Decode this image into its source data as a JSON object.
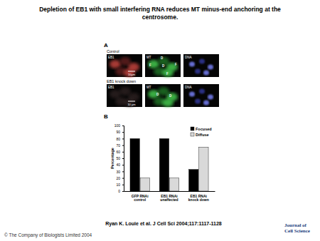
{
  "figure": {
    "title": "Depletion of EB1 with small interfering RNA reduces MT minus-end anchoring at the centrosome.",
    "panel_a": {
      "label": "A",
      "rows": [
        {
          "condition": "Control",
          "images": [
            {
              "channel": "EB1",
              "scale_bar": "10μm"
            },
            {
              "channel": "MT",
              "marks": [
                "F",
                "D",
                "D",
                "F",
                "F"
              ]
            },
            {
              "channel": "DNA"
            }
          ]
        },
        {
          "condition": "EB1 knock down",
          "images": [
            {
              "channel": "EB1",
              "scale_bar": "10 μm"
            },
            {
              "channel": "MT",
              "marks": [
                "D",
                "D"
              ]
            },
            {
              "channel": "DNA"
            }
          ]
        }
      ]
    },
    "panel_b": {
      "label": "B"
    },
    "citation": "Ryan K. Louie et al. J Cell Sci 2004;117:1117-1128",
    "copyright": "© The Company of Biologists Limited 2004",
    "journal": "Journal of Cell Science"
  },
  "chart_data": {
    "type": "bar",
    "categories": [
      "GFP RNAi control",
      "EB1 RNAi unaffected",
      "EB1 RNAi knock down"
    ],
    "series": [
      {
        "name": "Focused",
        "color": "#000000",
        "values": [
          80,
          80,
          33
        ]
      },
      {
        "name": "Diffuse",
        "color": "#d9d9d9",
        "values": [
          20,
          20,
          67
        ]
      }
    ],
    "y_label": "Percentage",
    "ylim": [
      0,
      100
    ],
    "yticks": [
      0,
      10,
      20,
      30,
      40,
      50,
      60,
      70,
      80,
      90,
      100
    ],
    "legend": "upper right"
  }
}
